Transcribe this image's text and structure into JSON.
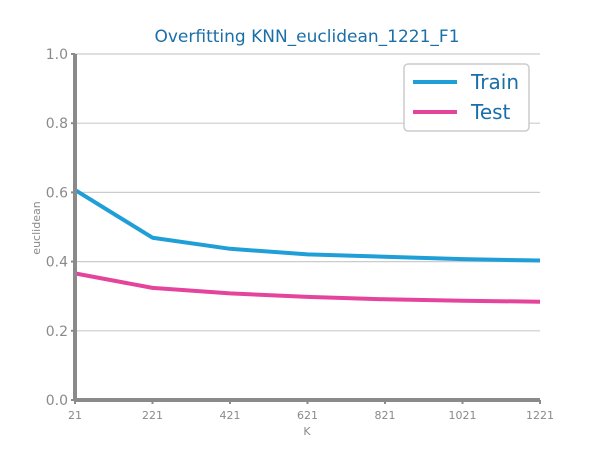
{
  "chart_data": {
    "type": "line",
    "title": "Overfitting KNN_euclidean_1221_F1",
    "xlabel": "K",
    "ylabel": "euclidean",
    "x": [
      21,
      221,
      421,
      621,
      821,
      1021,
      1221
    ],
    "xlim": [
      21,
      1221
    ],
    "ylim": [
      0,
      1.0
    ],
    "yticks": [
      "0.0",
      "0.2",
      "0.4",
      "0.6",
      "0.8",
      "1.0"
    ],
    "xticks": [
      "21",
      "221",
      "421",
      "621",
      "821",
      "1021",
      "1221"
    ],
    "grid": "horizontal",
    "legend_position": "top-right",
    "series": [
      {
        "name": "Train",
        "color": "#1f9ed8",
        "values": [
          0.607,
          0.469,
          0.437,
          0.421,
          0.414,
          0.407,
          0.403
        ]
      },
      {
        "name": "Test",
        "color": "#e5449c",
        "values": [
          0.366,
          0.324,
          0.308,
          0.298,
          0.291,
          0.287,
          0.284
        ]
      }
    ]
  }
}
